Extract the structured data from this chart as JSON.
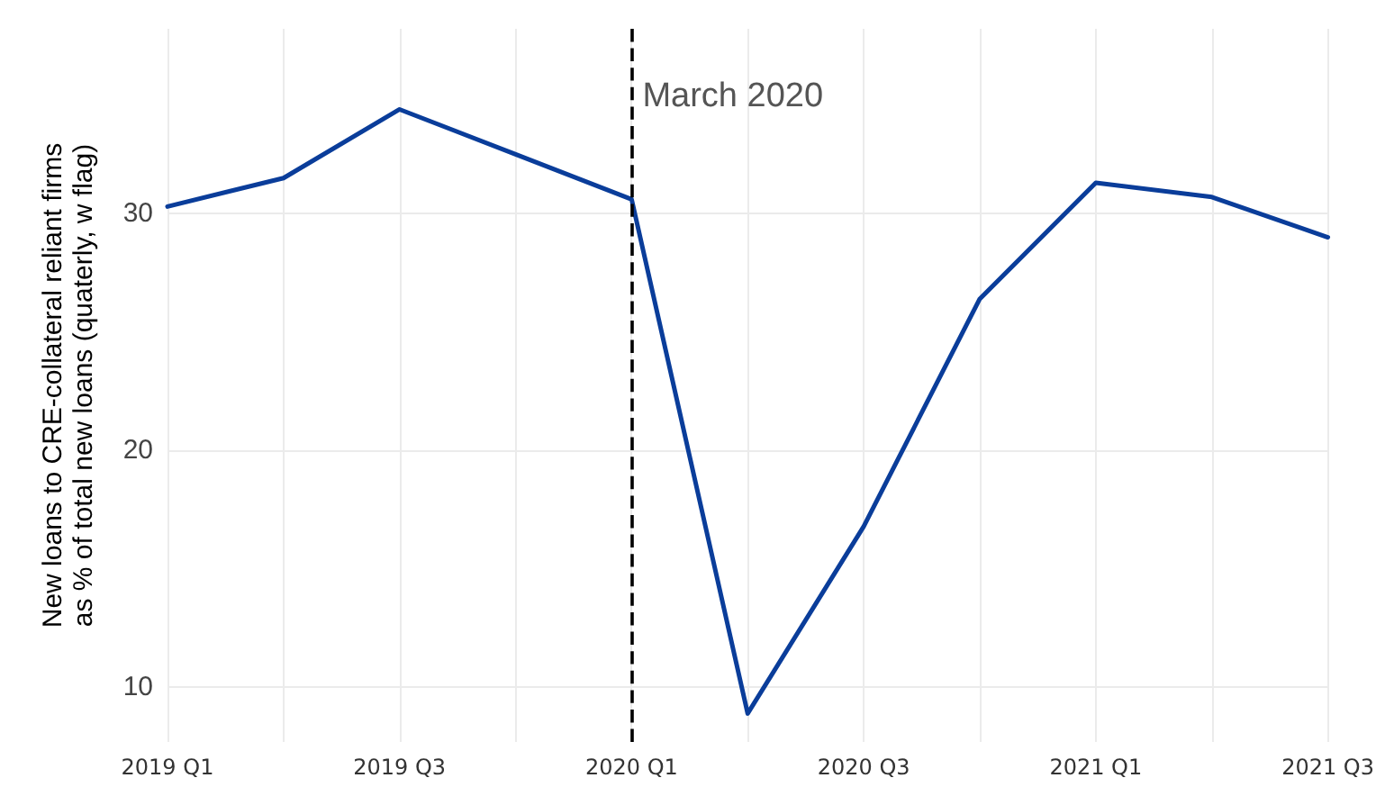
{
  "chart_data": {
    "type": "line",
    "ylabel": "New loans to CRE-collateral reliant firms\nas % of total new loans (quaterly, w flag)",
    "categories": [
      "2019 Q1",
      null,
      "2019 Q3",
      null,
      "2020 Q1",
      null,
      "2020 Q3",
      null,
      "2021 Q1",
      null,
      "2021 Q3"
    ],
    "series": [
      {
        "color": "#0a3d9a",
        "values": [
          30.3,
          31.5,
          34.4,
          32.5,
          30.6,
          8.9,
          16.8,
          26.4,
          31.3,
          30.7,
          29.0
        ]
      }
    ],
    "ylim": [
      7.7,
      37.8
    ],
    "yticks": [
      10,
      20,
      30
    ],
    "grid": true,
    "marker": "none",
    "line_style": "solid",
    "ref_lines": [
      {
        "axis": "x",
        "value": "2020 Q1",
        "label": "March 2020",
        "color": "#000000",
        "line_style": "dashed"
      }
    ]
  }
}
